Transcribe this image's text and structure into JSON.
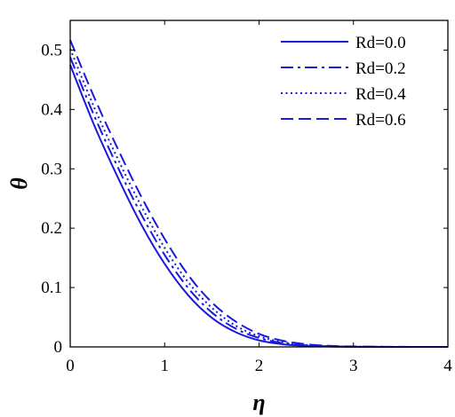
{
  "chart_data": {
    "type": "line",
    "title": "",
    "xlabel": "η",
    "ylabel": "θ",
    "xlim": [
      0,
      4
    ],
    "ylim": [
      0,
      0.55
    ],
    "xticks": [
      0,
      1,
      2,
      3,
      4
    ],
    "xtick_labels": [
      "0",
      "1",
      "2",
      "3",
      "4"
    ],
    "yticks": [
      0,
      0.1,
      0.2,
      0.3,
      0.4,
      0.5
    ],
    "ytick_labels": [
      "0",
      "0.1",
      "0.2",
      "0.3",
      "0.4",
      "0.5"
    ],
    "grid": false,
    "legend_position": "top-right",
    "line_color": "#1a1adb",
    "x": [
      0,
      0.25,
      0.5,
      0.75,
      1.0,
      1.25,
      1.5,
      1.75,
      2.0,
      2.25,
      2.5,
      2.75,
      3.0,
      3.5,
      4.0
    ],
    "series": [
      {
        "name": "Rd=0.0",
        "style": "solid",
        "values": [
          0.475,
          0.375,
          0.287,
          0.207,
          0.14,
          0.087,
          0.049,
          0.025,
          0.011,
          0.0045,
          0.0017,
          0.0006,
          0.0002,
          0.0,
          0.0
        ]
      },
      {
        "name": "Rd=0.2",
        "style": "dashdot",
        "values": [
          0.488,
          0.391,
          0.304,
          0.224,
          0.155,
          0.099,
          0.058,
          0.031,
          0.015,
          0.0065,
          0.0026,
          0.0009,
          0.0003,
          0.0,
          0.0
        ]
      },
      {
        "name": "Rd=0.4",
        "style": "dotted",
        "values": [
          0.502,
          0.405,
          0.318,
          0.238,
          0.167,
          0.109,
          0.066,
          0.036,
          0.018,
          0.0082,
          0.0034,
          0.0013,
          0.0004,
          0.0,
          0.0
        ]
      },
      {
        "name": "Rd=0.6",
        "style": "dashed",
        "values": [
          0.517,
          0.422,
          0.335,
          0.254,
          0.182,
          0.121,
          0.075,
          0.043,
          0.022,
          0.0105,
          0.0045,
          0.0018,
          0.0007,
          0.0001,
          0.0
        ]
      }
    ]
  }
}
